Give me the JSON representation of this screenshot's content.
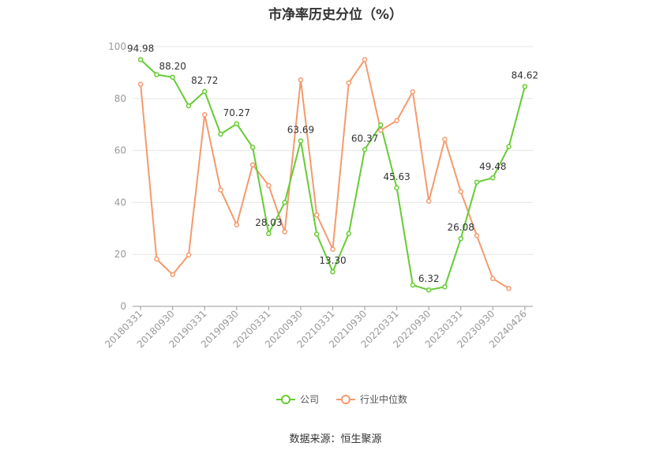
{
  "chart_data": {
    "type": "line",
    "title": "市净率历史分位（%）",
    "ylim": [
      0,
      100
    ],
    "yticks": [
      0,
      20,
      40,
      60,
      80,
      100
    ],
    "x": [
      "20180331",
      "20180630",
      "20180930",
      "20181231",
      "20190331",
      "20190630",
      "20190930",
      "20191231",
      "20200331",
      "20200630",
      "20200930",
      "20201231",
      "20210331",
      "20210630",
      "20210930",
      "20211231",
      "20220331",
      "20220630",
      "20220930",
      "20221231",
      "20230331",
      "20230630",
      "20230930",
      "20231231",
      "20240426"
    ],
    "xticks": [
      "20180331",
      "20180930",
      "20190331",
      "20190930",
      "20200331",
      "20200930",
      "20210331",
      "20210930",
      "20220331",
      "20220930",
      "20230331",
      "20230930",
      "20240426"
    ],
    "series": [
      {
        "name": "公司",
        "color": "#66cc33",
        "values": [
          94.98,
          89.2,
          88.2,
          77.2,
          82.72,
          66.3,
          70.27,
          61.2,
          28.03,
          40.0,
          63.69,
          27.8,
          13.3,
          28.0,
          60.37,
          69.8,
          45.63,
          8.2,
          6.32,
          7.5,
          26.08,
          47.8,
          49.48,
          61.5,
          84.62
        ]
      },
      {
        "name": "行业中位数",
        "color": "#f59a6d",
        "values": [
          85.5,
          18.2,
          12.2,
          19.8,
          73.8,
          44.8,
          31.4,
          54.5,
          46.5,
          28.7,
          87.2,
          35.2,
          22.0,
          86.0,
          95.0,
          67.8,
          71.5,
          82.6,
          40.5,
          64.3,
          44.2,
          27.2,
          10.7,
          6.9,
          null
        ]
      }
    ],
    "labels": [
      {
        "index": 0,
        "text": "94.98"
      },
      {
        "index": 2,
        "text": "88.20"
      },
      {
        "index": 4,
        "text": "82.72"
      },
      {
        "index": 6,
        "text": "70.27"
      },
      {
        "index": 8,
        "text": "28.03"
      },
      {
        "index": 10,
        "text": "63.69"
      },
      {
        "index": 12,
        "text": "13.30"
      },
      {
        "index": 14,
        "text": "60.37"
      },
      {
        "index": 16,
        "text": "45.63"
      },
      {
        "index": 18,
        "text": "6.32"
      },
      {
        "index": 20,
        "text": "26.08"
      },
      {
        "index": 22,
        "text": "49.48"
      },
      {
        "index": 24,
        "text": "84.62"
      }
    ],
    "legend_position": "bottom-center"
  },
  "source": "数据来源：恒生聚源"
}
